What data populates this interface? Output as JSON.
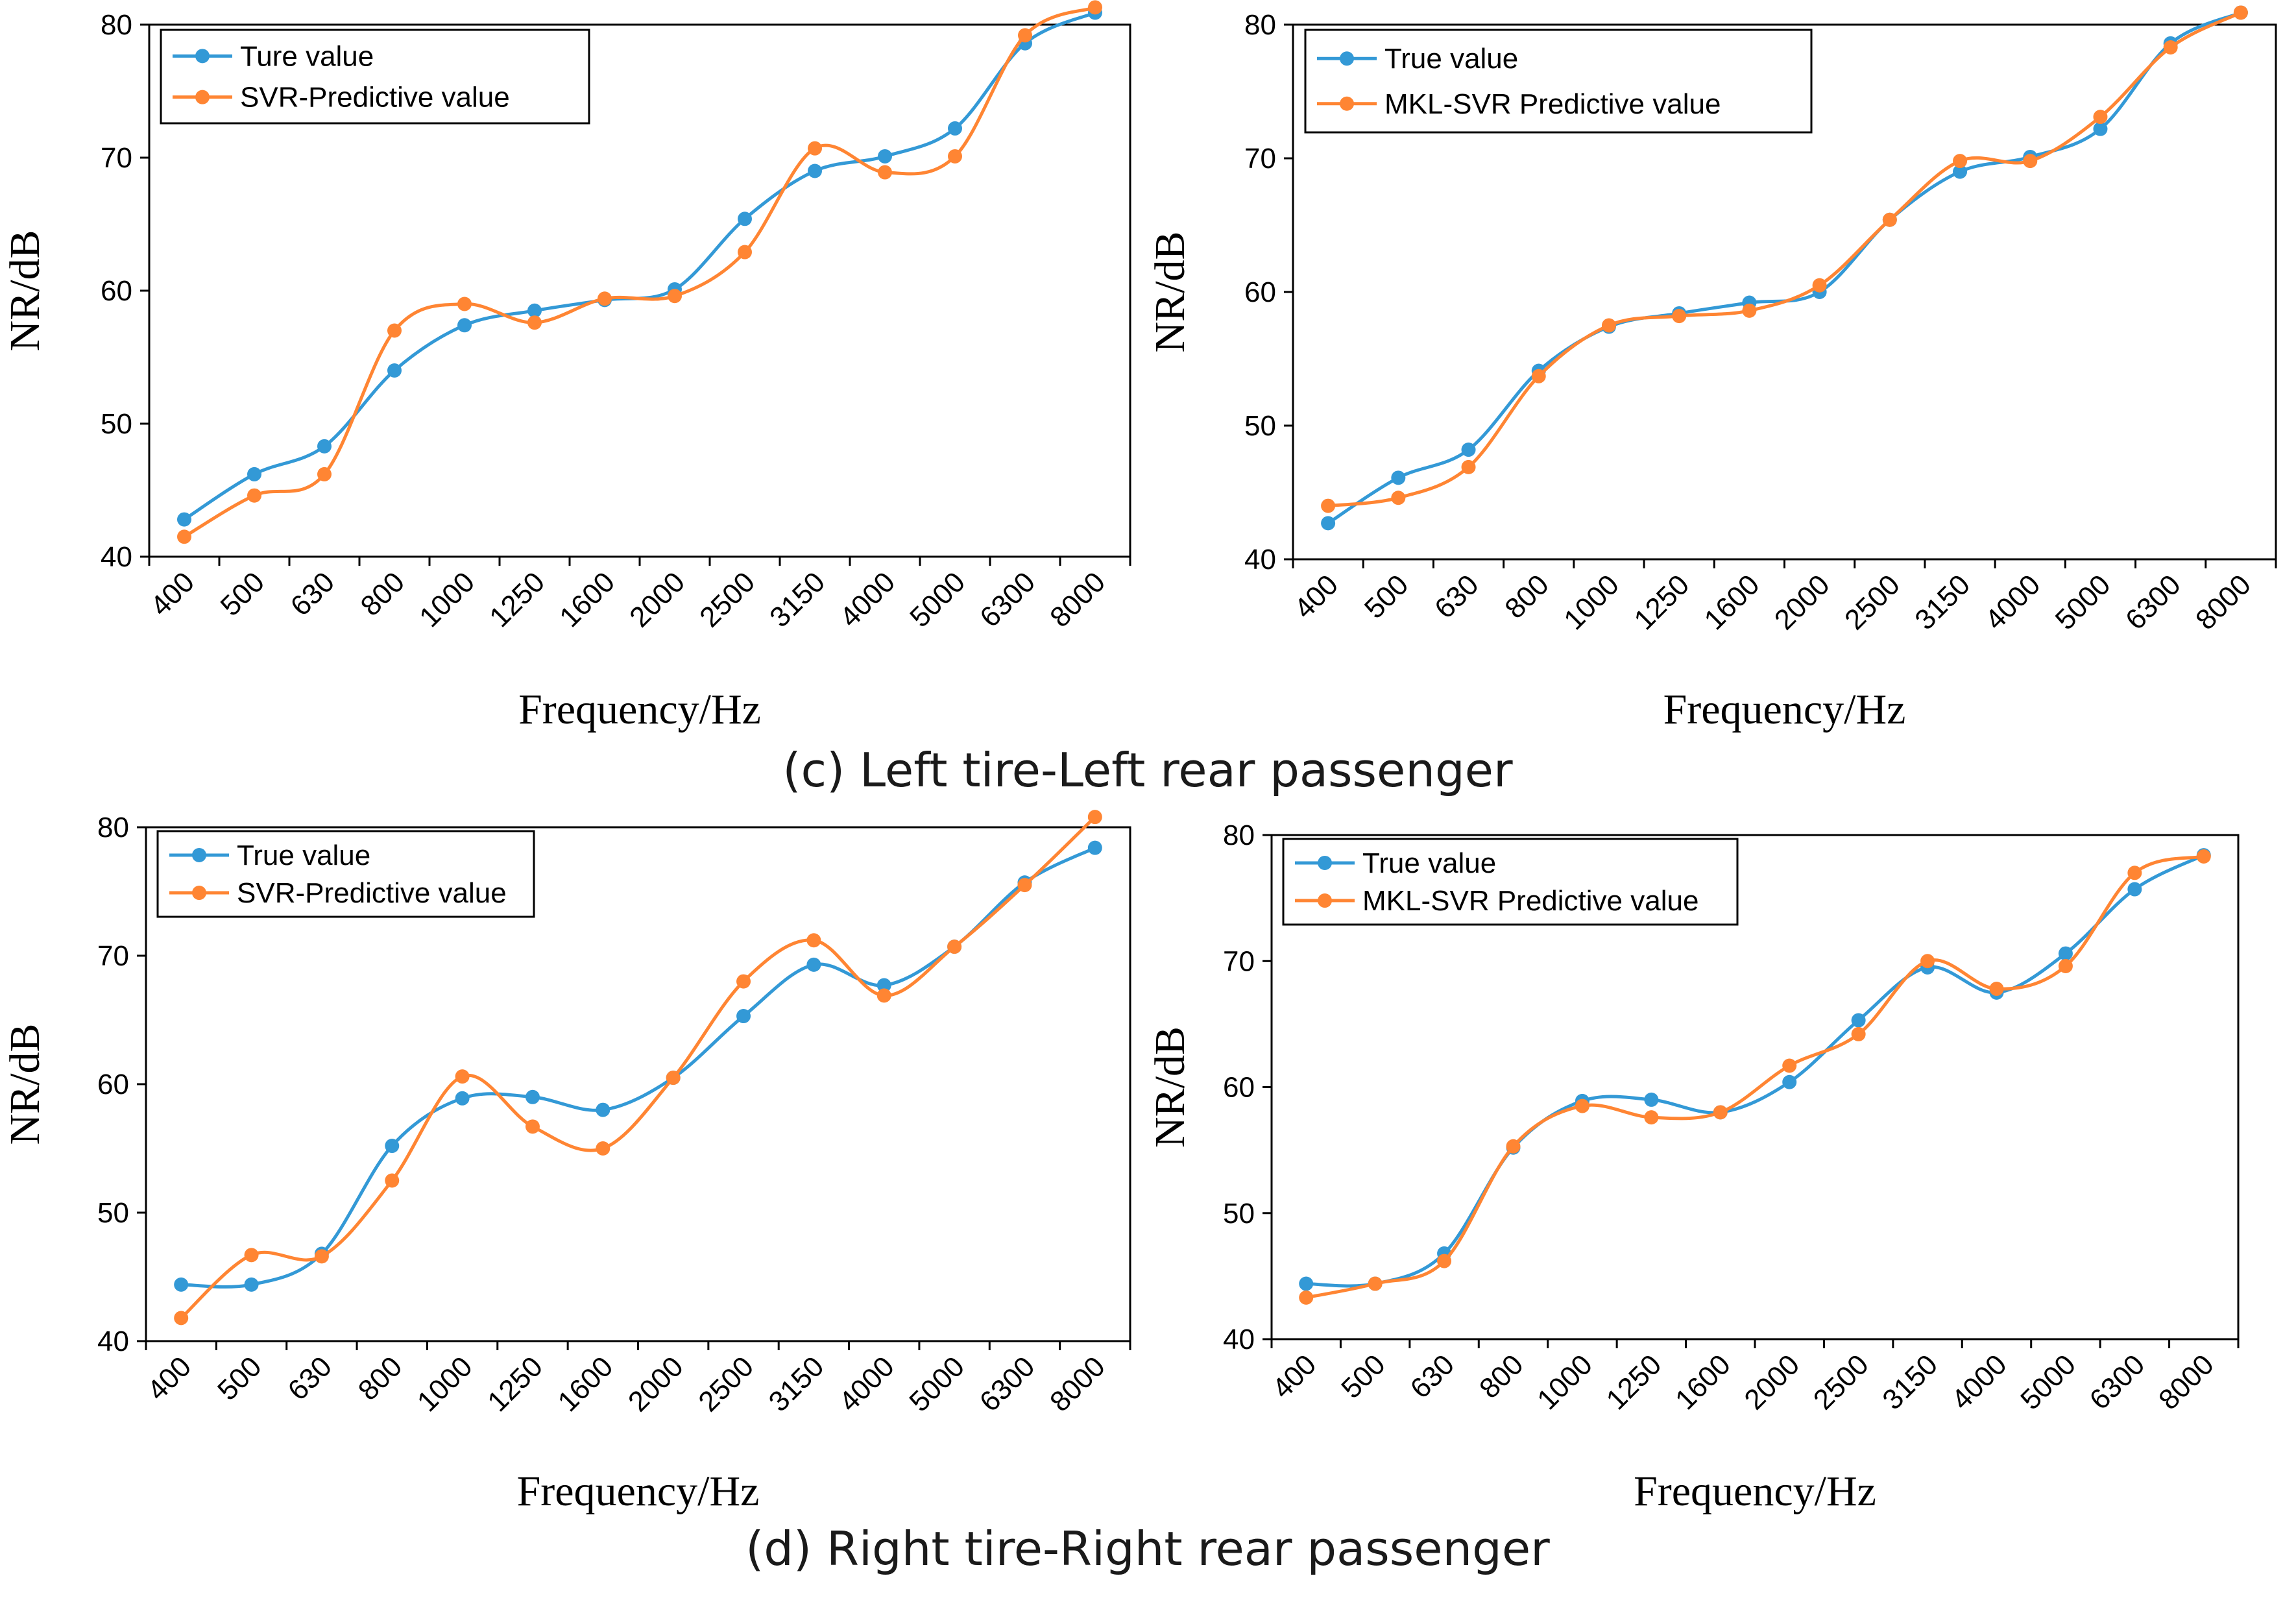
{
  "figure": {
    "caption_c": "(c)  Left tire-Left rear passenger",
    "caption_d": "(d)  Right tire-Right rear passenger"
  },
  "colors": {
    "true_series": "#3399d6",
    "pred_series": "#ff8533"
  },
  "chart_data": [
    {
      "type": "line",
      "panel": "c-left",
      "title": "",
      "xlabel": "Frequency/Hz",
      "ylabel": "NR/dB",
      "ylim": [
        40,
        80
      ],
      "yticks": [
        40,
        50,
        60,
        70,
        80
      ],
      "categories": [
        "400",
        "500",
        "630",
        "800",
        "1000",
        "1250",
        "1600",
        "2000",
        "2500",
        "3150",
        "4000",
        "5000",
        "6300",
        "8000"
      ],
      "legend_position": "top-left",
      "series": [
        {
          "name": "Ture value",
          "color": "#3399d6",
          "values": [
            42.8,
            46.2,
            48.3,
            54.0,
            57.4,
            58.5,
            59.3,
            60.1,
            65.4,
            69.0,
            70.1,
            72.2,
            78.6,
            80.9
          ]
        },
        {
          "name": "SVR-Predictive value",
          "color": "#ff8533",
          "values": [
            41.5,
            44.6,
            46.2,
            57.0,
            59.0,
            57.6,
            59.4,
            59.6,
            62.9,
            70.7,
            68.9,
            70.1,
            79.2,
            81.3
          ]
        }
      ]
    },
    {
      "type": "line",
      "panel": "c-right",
      "title": "",
      "xlabel": "Frequency/Hz",
      "ylabel": "NR/dB",
      "ylim": [
        40,
        80
      ],
      "yticks": [
        40,
        50,
        60,
        70,
        80
      ],
      "categories": [
        "400",
        "500",
        "630",
        "800",
        "1000",
        "1250",
        "1600",
        "2000",
        "2500",
        "3150",
        "4000",
        "5000",
        "6300",
        "8000"
      ],
      "legend_position": "top-left",
      "series": [
        {
          "name": "True value",
          "color": "#3399d6",
          "values": [
            42.7,
            46.1,
            48.2,
            54.1,
            57.4,
            58.4,
            59.2,
            60.0,
            65.4,
            69.0,
            70.1,
            72.2,
            78.6,
            80.9
          ]
        },
        {
          "name": "MKL-SVR Predictive value",
          "color": "#ff8533",
          "values": [
            44.0,
            44.6,
            46.9,
            53.7,
            57.5,
            58.2,
            58.6,
            60.5,
            65.4,
            69.8,
            69.8,
            73.1,
            78.3,
            80.9
          ]
        }
      ]
    },
    {
      "type": "line",
      "panel": "d-left",
      "title": "",
      "xlabel": "Frequency/Hz",
      "ylabel": "NR/dB",
      "ylim": [
        40,
        80
      ],
      "yticks": [
        40,
        50,
        60,
        70,
        80
      ],
      "categories": [
        "400",
        "500",
        "630",
        "800",
        "1000",
        "1250",
        "1600",
        "2000",
        "2500",
        "3150",
        "4000",
        "5000",
        "6300",
        "8000"
      ],
      "legend_position": "top-left",
      "series": [
        {
          "name": "True value",
          "color": "#3399d6",
          "values": [
            44.4,
            44.4,
            46.8,
            55.2,
            58.9,
            59.0,
            58.0,
            60.5,
            65.3,
            69.3,
            67.7,
            70.7,
            75.7,
            78.4
          ]
        },
        {
          "name": "SVR-Predictive value",
          "color": "#ff8533",
          "values": [
            41.8,
            46.7,
            46.6,
            52.5,
            60.6,
            56.7,
            55.0,
            60.5,
            68.0,
            71.2,
            66.9,
            70.7,
            75.5,
            80.8
          ]
        }
      ]
    },
    {
      "type": "line",
      "panel": "d-right",
      "title": "",
      "xlabel": "Frequency/Hz",
      "ylabel": "NR/dB",
      "ylim": [
        40,
        80
      ],
      "yticks": [
        40,
        50,
        60,
        70,
        80
      ],
      "categories": [
        "400",
        "500",
        "630",
        "800",
        "1000",
        "1250",
        "1600",
        "2000",
        "2500",
        "3150",
        "4000",
        "5000",
        "6300",
        "8000"
      ],
      "legend_position": "top-left",
      "series": [
        {
          "name": "True value",
          "color": "#3399d6",
          "values": [
            44.4,
            44.4,
            46.8,
            55.2,
            58.9,
            59.0,
            58.0,
            60.4,
            65.3,
            69.5,
            67.5,
            70.6,
            75.7,
            78.4
          ]
        },
        {
          "name": "MKL-SVR Predictive value",
          "color": "#ff8533",
          "values": [
            43.3,
            44.4,
            46.2,
            55.3,
            58.5,
            57.6,
            58.0,
            61.7,
            64.2,
            70.0,
            67.8,
            69.6,
            77.0,
            78.3
          ]
        }
      ]
    }
  ]
}
